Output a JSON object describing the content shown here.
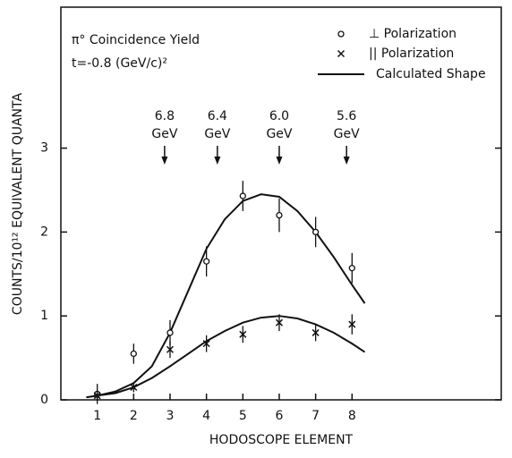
{
  "chart_data": {
    "type": "scatter",
    "title": [
      "π° Coincidence Yield",
      "t=-0.8 (GeV/c)²"
    ],
    "x_label": "HODOSCOPE ELEMENT",
    "y_label": "COUNTS/10¹² EQUIVALENT QUANTA",
    "xlim": [
      0,
      12.1
    ],
    "ylim": [
      0,
      4.68
    ],
    "xticks": [
      1,
      2,
      3,
      4,
      5,
      6,
      7,
      8
    ],
    "yticks": [
      0,
      1,
      2,
      3
    ],
    "series": [
      {
        "name": "⊥ Polarization",
        "marker": "circle",
        "color": "#111111",
        "x": [
          1,
          2,
          3,
          4,
          5,
          6,
          7,
          8
        ],
        "values": [
          0.07,
          0.55,
          0.8,
          1.65,
          2.43,
          2.2,
          2.0,
          1.57
        ],
        "errors": [
          0.12,
          0.12,
          0.15,
          0.18,
          0.18,
          0.2,
          0.18,
          0.18
        ]
      },
      {
        "name": "|| Polarization",
        "marker": "x",
        "color": "#111111",
        "x": [
          1,
          2,
          3,
          4,
          5,
          6,
          7,
          8
        ],
        "values": [
          0.05,
          0.15,
          0.6,
          0.67,
          0.78,
          0.92,
          0.8,
          0.9
        ],
        "errors": [
          0.05,
          0.06,
          0.1,
          0.1,
          0.1,
          0.1,
          0.1,
          0.12
        ]
      }
    ],
    "fit": {
      "name": "Calculated Shape",
      "color": "#111111",
      "curves": [
        {
          "x": [
            0.7,
            1,
            1.5,
            2,
            2.5,
            3,
            3.5,
            4,
            4.5,
            5,
            5.5,
            6,
            6.5,
            7,
            7.5,
            8,
            8.35
          ],
          "values": [
            0.03,
            0.05,
            0.1,
            0.2,
            0.4,
            0.8,
            1.3,
            1.8,
            2.15,
            2.37,
            2.45,
            2.42,
            2.25,
            2.0,
            1.7,
            1.37,
            1.15
          ]
        },
        {
          "x": [
            0.7,
            1,
            1.5,
            2,
            2.5,
            3,
            3.5,
            4,
            4.5,
            5,
            5.5,
            6,
            6.5,
            7,
            7.5,
            8,
            8.35
          ],
          "values": [
            0.03,
            0.05,
            0.08,
            0.15,
            0.26,
            0.4,
            0.55,
            0.7,
            0.82,
            0.92,
            0.98,
            1.0,
            0.97,
            0.9,
            0.8,
            0.67,
            0.57
          ]
        }
      ]
    },
    "annotations": [
      {
        "x": 2.85,
        "value": "6.8",
        "unit": "GeV"
      },
      {
        "x": 4.3,
        "value": "6.4",
        "unit": "GeV"
      },
      {
        "x": 6.0,
        "value": "6.0",
        "unit": "GeV"
      },
      {
        "x": 7.85,
        "value": "5.6",
        "unit": "GeV"
      }
    ]
  }
}
